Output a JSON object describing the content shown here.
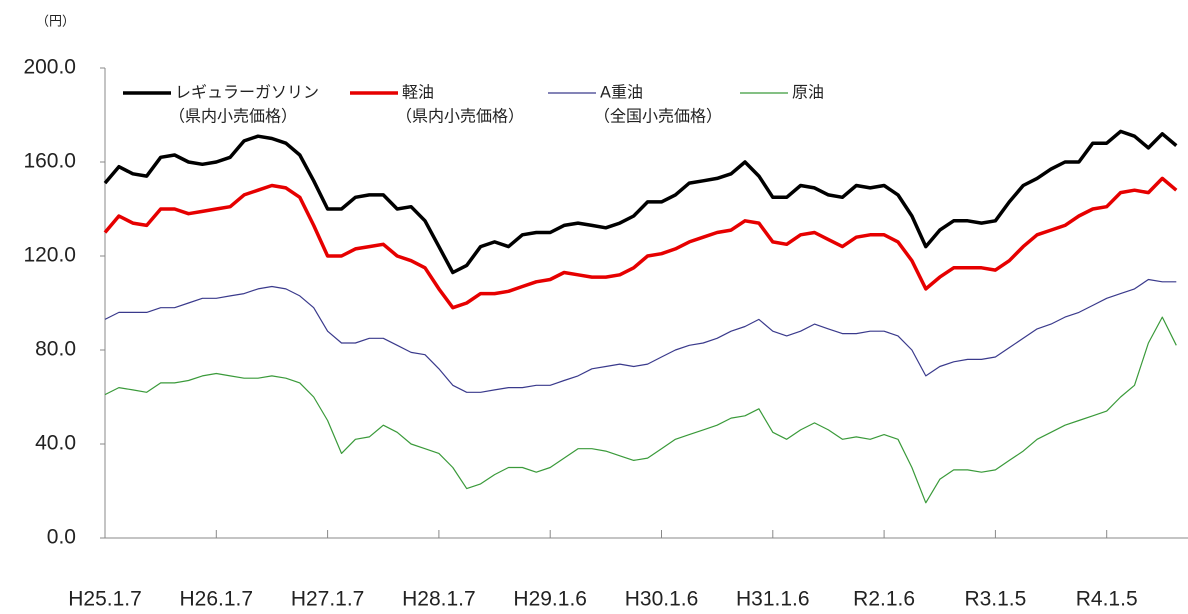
{
  "chart_data": {
    "type": "line",
    "y_label": "（円）",
    "categories": [
      "H25.1.7",
      null,
      null,
      null,
      null,
      null,
      null,
      null,
      "H26.1.7",
      null,
      null,
      null,
      null,
      null,
      null,
      null,
      "H27.1.7",
      null,
      null,
      null,
      null,
      null,
      null,
      null,
      "H28.1.7",
      null,
      null,
      null,
      null,
      null,
      null,
      null,
      "H29.1.6",
      null,
      null,
      null,
      null,
      null,
      null,
      null,
      "H30.1.6",
      null,
      null,
      null,
      null,
      null,
      null,
      null,
      "H31.1.6",
      null,
      null,
      null,
      null,
      null,
      null,
      null,
      "R2.1.6",
      null,
      null,
      null,
      null,
      null,
      null,
      null,
      "R3.1.5",
      null,
      null,
      null,
      null,
      null,
      null,
      null,
      "R4.1.5",
      null,
      null,
      null,
      null,
      null
    ],
    "ylim": [
      0,
      200
    ],
    "yticks": [
      {
        "value": 0,
        "label": "0.0"
      },
      {
        "value": 40,
        "label": "40.0"
      },
      {
        "value": 80,
        "label": "80.0"
      },
      {
        "value": 120,
        "label": "120.0"
      },
      {
        "value": 160,
        "label": "160.0"
      },
      {
        "value": 200,
        "label": "200.0"
      }
    ],
    "series": [
      {
        "name": "レギュラーガソリン",
        "legend_note": "（県内小売価格）",
        "color": "#000000",
        "width": 3.5,
        "values": [
          151,
          158,
          155,
          154,
          162,
          163,
          160,
          159,
          160,
          162,
          169,
          171,
          170,
          168,
          163,
          152,
          140,
          140,
          145,
          146,
          146,
          140,
          141,
          135,
          124,
          113,
          116,
          124,
          126,
          124,
          129,
          130,
          130,
          133,
          134,
          133,
          132,
          134,
          137,
          143,
          143,
          146,
          151,
          152,
          153,
          155,
          160,
          154,
          145,
          145,
          150,
          149,
          146,
          145,
          150,
          149,
          150,
          146,
          137,
          124,
          131,
          135,
          135,
          134,
          135,
          143,
          150,
          153,
          157,
          160,
          160,
          168,
          168,
          173,
          171,
          166,
          172,
          167
        ]
      },
      {
        "name": "軽油",
        "legend_note": "（県内小売価格）",
        "color": "#e60000",
        "width": 3.5,
        "values": [
          130,
          137,
          134,
          133,
          140,
          140,
          138,
          139,
          140,
          141,
          146,
          148,
          150,
          149,
          145,
          133,
          120,
          120,
          123,
          124,
          125,
          120,
          118,
          115,
          106,
          98,
          100,
          104,
          104,
          105,
          107,
          109,
          110,
          113,
          112,
          111,
          111,
          112,
          115,
          120,
          121,
          123,
          126,
          128,
          130,
          131,
          135,
          134,
          126,
          125,
          129,
          130,
          127,
          124,
          128,
          129,
          129,
          126,
          118,
          106,
          111,
          115,
          115,
          115,
          114,
          118,
          124,
          129,
          131,
          133,
          137,
          140,
          141,
          147,
          148,
          147,
          153,
          148
        ]
      },
      {
        "name": "A重油",
        "legend_note": "（全国小売価格）",
        "color": "#3a3a8c",
        "width": 1.2,
        "values": [
          93,
          96,
          96,
          96,
          98,
          98,
          100,
          102,
          102,
          103,
          104,
          106,
          107,
          106,
          103,
          98,
          88,
          83,
          83,
          85,
          85,
          82,
          79,
          78,
          72,
          65,
          62,
          62,
          63,
          64,
          64,
          65,
          65,
          67,
          69,
          72,
          73,
          74,
          73,
          74,
          77,
          80,
          82,
          83,
          85,
          88,
          90,
          93,
          88,
          86,
          88,
          91,
          89,
          87,
          87,
          88,
          88,
          86,
          80,
          69,
          73,
          75,
          76,
          76,
          77,
          81,
          85,
          89,
          91,
          94,
          96,
          99,
          102,
          104,
          106,
          110,
          109,
          109
        ]
      },
      {
        "name": "原油",
        "color": "#3a9a3a",
        "width": 1.2,
        "values": [
          61,
          64,
          63,
          62,
          66,
          66,
          67,
          69,
          70,
          69,
          68,
          68,
          69,
          68,
          66,
          60,
          50,
          36,
          42,
          43,
          48,
          45,
          40,
          38,
          36,
          30,
          21,
          23,
          27,
          30,
          30,
          28,
          30,
          34,
          38,
          38,
          37,
          35,
          33,
          34,
          38,
          42,
          44,
          46,
          48,
          51,
          52,
          55,
          45,
          42,
          46,
          49,
          46,
          42,
          43,
          42,
          44,
          42,
          30,
          15,
          25,
          29,
          29,
          28,
          29,
          33,
          37,
          42,
          45,
          48,
          50,
          52,
          54,
          60,
          65,
          83,
          94,
          82
        ]
      }
    ]
  }
}
